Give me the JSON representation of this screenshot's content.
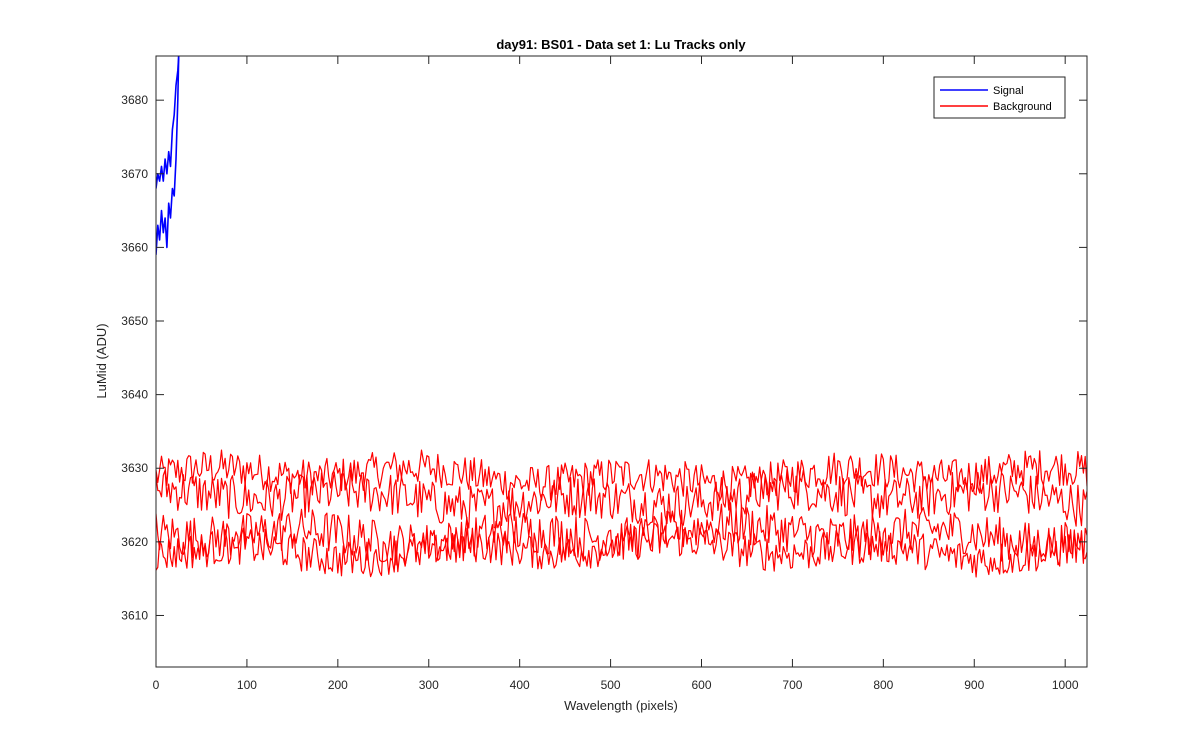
{
  "chart_data": {
    "type": "line",
    "title": "day91: BS01 - Data set 1: Lu Tracks only",
    "xlabel": "Wavelength (pixels)",
    "ylabel": "LuMid (ADU)",
    "xlim": [
      0,
      1024
    ],
    "ylim": [
      3603,
      3686
    ],
    "xticks": [
      0,
      100,
      200,
      300,
      400,
      500,
      600,
      700,
      800,
      900,
      1000
    ],
    "yticks": [
      3610,
      3620,
      3630,
      3640,
      3650,
      3660,
      3670,
      3680
    ],
    "grid": false,
    "legend_position": "top-right",
    "series": [
      {
        "name": "Signal",
        "color": "#0000ff",
        "description": "rises steeply off the top of the axes within the first ~25 pixels",
        "tracks": [
          {
            "x": [
              0,
              2,
              4,
              6,
              8,
              10,
              12,
              14,
              16,
              18,
              20,
              22,
              24,
              25
            ],
            "y": [
              3659,
              3663,
              3661,
              3665,
              3662,
              3664,
              3660,
              3666,
              3664,
              3668,
              3667,
              3672,
              3680,
              3686
            ]
          },
          {
            "x": [
              0,
              2,
              4,
              6,
              8,
              10,
              12,
              14,
              16,
              18,
              20,
              22,
              24,
              25
            ],
            "y": [
              3668,
              3670,
              3669,
              3671,
              3669,
              3672,
              3670,
              3673,
              3671,
              3676,
              3678,
              3682,
              3684,
              3686
            ]
          }
        ]
      },
      {
        "name": "Background",
        "color": "#ff0000",
        "description": "four noisy tracks spanning x = 0–1024",
        "tracks": [
          {
            "mean": 3629,
            "noise_amplitude": 2.5
          },
          {
            "mean": 3626,
            "noise_amplitude": 3
          },
          {
            "mean": 3621,
            "noise_amplitude": 3
          },
          {
            "mean": 3619,
            "noise_amplitude": 2.5
          }
        ],
        "overall_min": 3613,
        "overall_max": 3636
      }
    ]
  }
}
